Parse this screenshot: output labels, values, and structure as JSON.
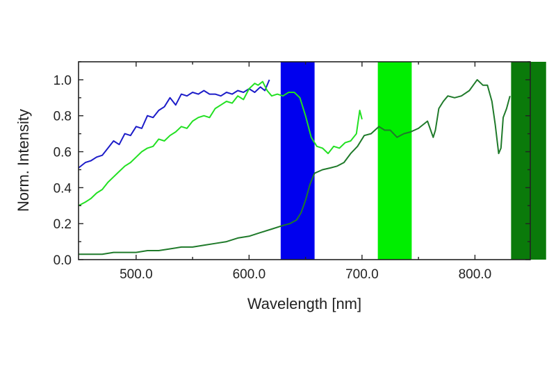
{
  "chart_data": {
    "type": "line",
    "title": "",
    "xlabel": "Wavelength [nm]",
    "ylabel": "Norm. Intensity",
    "xlim": [
      449,
      849
    ],
    "ylim": [
      0,
      1.1
    ],
    "grid": false,
    "legend": "none",
    "x_ticks": [
      {
        "value": 500,
        "label": "500.0"
      },
      {
        "value": 600,
        "label": "600.0"
      },
      {
        "value": 700,
        "label": "700.0"
      },
      {
        "value": 800,
        "label": "800.0"
      }
    ],
    "y_ticks": [
      {
        "value": 0.0,
        "label": "0.0"
      },
      {
        "value": 0.2,
        "label": "0.2"
      },
      {
        "value": 0.4,
        "label": "0.4"
      },
      {
        "value": 0.6,
        "label": "0.6"
      },
      {
        "value": 0.8,
        "label": "0.8"
      },
      {
        "value": 1.0,
        "label": "1.0"
      }
    ],
    "bands": [
      {
        "from": 628,
        "to": 658,
        "color": "#0000ee"
      },
      {
        "from": 714,
        "to": 744,
        "color": "#00ee00"
      },
      {
        "from": 832,
        "to": 863,
        "color": "#0a7a0a"
      }
    ],
    "series": [
      {
        "color": "#1c1cc8",
        "x": [
          449,
          455,
          460,
          465,
          470,
          475,
          480,
          485,
          490,
          495,
          500,
          505,
          510,
          515,
          520,
          525,
          530,
          535,
          540,
          545,
          550,
          555,
          560,
          565,
          570,
          575,
          580,
          585,
          590,
          595,
          600,
          605,
          610,
          614,
          618
        ],
        "y": [
          0.51,
          0.54,
          0.55,
          0.57,
          0.58,
          0.62,
          0.66,
          0.64,
          0.7,
          0.69,
          0.74,
          0.73,
          0.8,
          0.79,
          0.83,
          0.85,
          0.9,
          0.86,
          0.92,
          0.91,
          0.93,
          0.92,
          0.94,
          0.92,
          0.92,
          0.91,
          0.93,
          0.92,
          0.94,
          0.93,
          0.95,
          0.93,
          0.96,
          0.94,
          1.0
        ]
      },
      {
        "color": "#22e022",
        "x": [
          449,
          455,
          460,
          465,
          470,
          475,
          480,
          485,
          490,
          495,
          500,
          505,
          510,
          515,
          520,
          525,
          530,
          535,
          540,
          545,
          550,
          555,
          560,
          565,
          570,
          575,
          580,
          585,
          590,
          595,
          600,
          605,
          608,
          612,
          616,
          620,
          625,
          630,
          635,
          640,
          645,
          650,
          655,
          660,
          665,
          670,
          675,
          680,
          685,
          690,
          695,
          698,
          700
        ],
        "y": [
          0.3,
          0.32,
          0.34,
          0.37,
          0.39,
          0.43,
          0.46,
          0.49,
          0.52,
          0.54,
          0.57,
          0.6,
          0.62,
          0.63,
          0.67,
          0.66,
          0.69,
          0.71,
          0.74,
          0.73,
          0.77,
          0.79,
          0.8,
          0.79,
          0.84,
          0.86,
          0.88,
          0.87,
          0.91,
          0.89,
          0.95,
          0.98,
          0.97,
          0.99,
          0.94,
          0.91,
          0.92,
          0.91,
          0.93,
          0.93,
          0.9,
          0.8,
          0.68,
          0.63,
          0.62,
          0.59,
          0.63,
          0.62,
          0.65,
          0.66,
          0.7,
          0.83,
          0.78
        ]
      },
      {
        "color": "#1f7a2a",
        "x": [
          449,
          460,
          470,
          480,
          490,
          500,
          510,
          520,
          530,
          540,
          550,
          560,
          570,
          580,
          590,
          600,
          610,
          620,
          630,
          636,
          642,
          646,
          650,
          654,
          658,
          665,
          672,
          678,
          684,
          690,
          696,
          702,
          708,
          715,
          720,
          725,
          731,
          737,
          743,
          750,
          758,
          763,
          765,
          768,
          772,
          776,
          782,
          788,
          795,
          802,
          807,
          811,
          815,
          818,
          821,
          823,
          825,
          828,
          831
        ],
        "y": [
          0.03,
          0.03,
          0.03,
          0.04,
          0.04,
          0.04,
          0.05,
          0.05,
          0.06,
          0.07,
          0.07,
          0.08,
          0.09,
          0.1,
          0.12,
          0.13,
          0.15,
          0.17,
          0.19,
          0.2,
          0.22,
          0.26,
          0.33,
          0.42,
          0.48,
          0.5,
          0.51,
          0.52,
          0.54,
          0.59,
          0.63,
          0.69,
          0.7,
          0.74,
          0.72,
          0.72,
          0.68,
          0.7,
          0.71,
          0.73,
          0.77,
          0.68,
          0.72,
          0.84,
          0.88,
          0.91,
          0.9,
          0.91,
          0.94,
          1.0,
          0.97,
          0.97,
          0.88,
          0.75,
          0.59,
          0.62,
          0.79,
          0.84,
          0.91
        ]
      }
    ]
  }
}
